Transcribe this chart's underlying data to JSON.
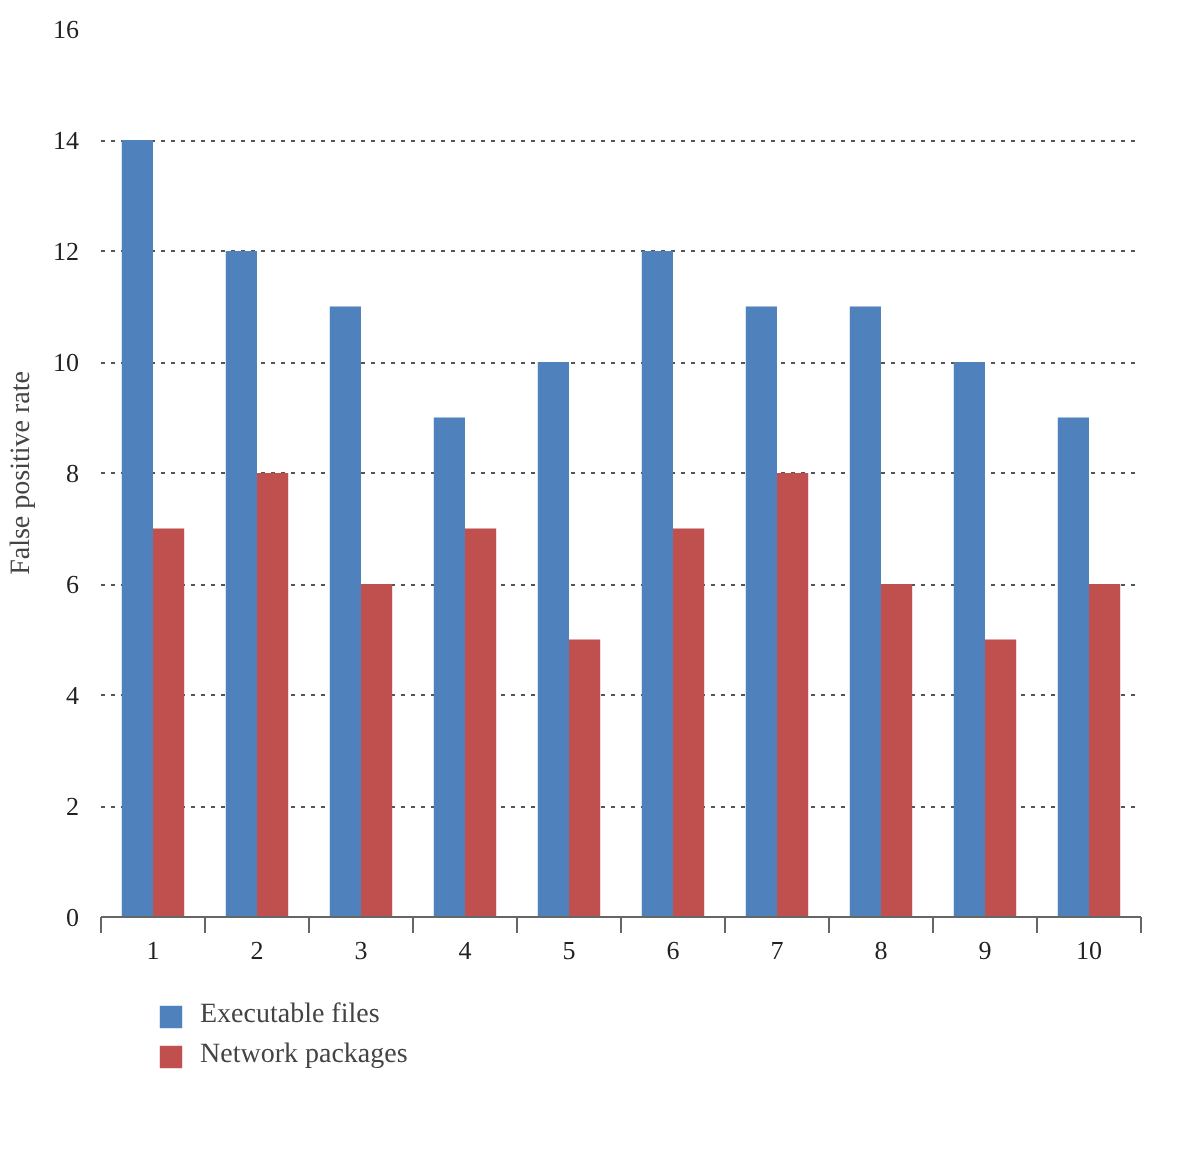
{
  "chart_data": {
    "type": "bar",
    "ylabel": "False positive rate",
    "categories": [
      "1",
      "2",
      "3",
      "4",
      "5",
      "6",
      "7",
      "8",
      "9",
      "10"
    ],
    "series": [
      {
        "name": "Executable files",
        "color": "#4f81bd",
        "values": [
          14,
          12,
          11,
          9,
          10,
          12,
          11,
          11,
          10,
          9
        ]
      },
      {
        "name": "Network packages",
        "color": "#c0504d",
        "values": [
          7,
          8,
          6,
          7,
          5,
          7,
          8,
          6,
          5,
          6
        ]
      }
    ],
    "ylim": [
      0,
      16
    ],
    "yticks": [
      0,
      2,
      4,
      6,
      8,
      10,
      12,
      14,
      16
    ],
    "grid": "y",
    "legend": "bottom"
  }
}
